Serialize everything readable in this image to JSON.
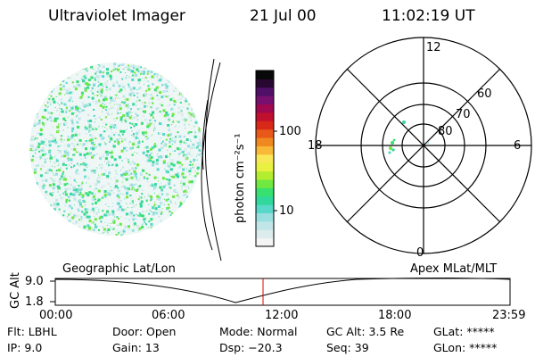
{
  "header": {
    "instrument": "Ultraviolet Imager",
    "date": "21 Jul 00",
    "time": "11:02:19 UT"
  },
  "colorbar": {
    "unit_label": "photon cm⁻²s⁻¹",
    "ticks": [
      "100",
      "10"
    ],
    "colors": [
      "#f4f4f4",
      "#dcecec",
      "#c2e6e8",
      "#9adfe0",
      "#58d8c8",
      "#30d89c",
      "#38e070",
      "#70e840",
      "#b4ec30",
      "#e8f040",
      "#f8e858",
      "#f8b838",
      "#f08820",
      "#e85818",
      "#d82818",
      "#c01030",
      "#a00850",
      "#781070",
      "#501068",
      "#280830",
      "#080808"
    ]
  },
  "polar": {
    "mlt_labels": [
      "12",
      "18",
      "6",
      "0"
    ],
    "lat_labels": [
      "60",
      "70",
      "80"
    ]
  },
  "timeline": {
    "left_label": "Geographic Lat/Lon",
    "right_label": "Apex MLat/MLT",
    "axis_title": "GC Alt",
    "y_ticks": [
      "9.0",
      "1.8"
    ],
    "x_ticks": [
      "00:00",
      "06:00",
      "12:00",
      "18:00",
      "23:59"
    ],
    "marker_color": "#e00000"
  },
  "info": {
    "filter": "Flt: LBHL",
    "ip": "IP:  9.0",
    "door": "Door: Open",
    "gain": "Gain: 13",
    "mode": "Mode: Normal",
    "dsp": "Dsp:  −20.3",
    "gc_alt": "GC Alt: 3.5 Re",
    "seq": "Seq: 39",
    "glat": "GLat: *****",
    "glon": "GLon: *****"
  }
}
